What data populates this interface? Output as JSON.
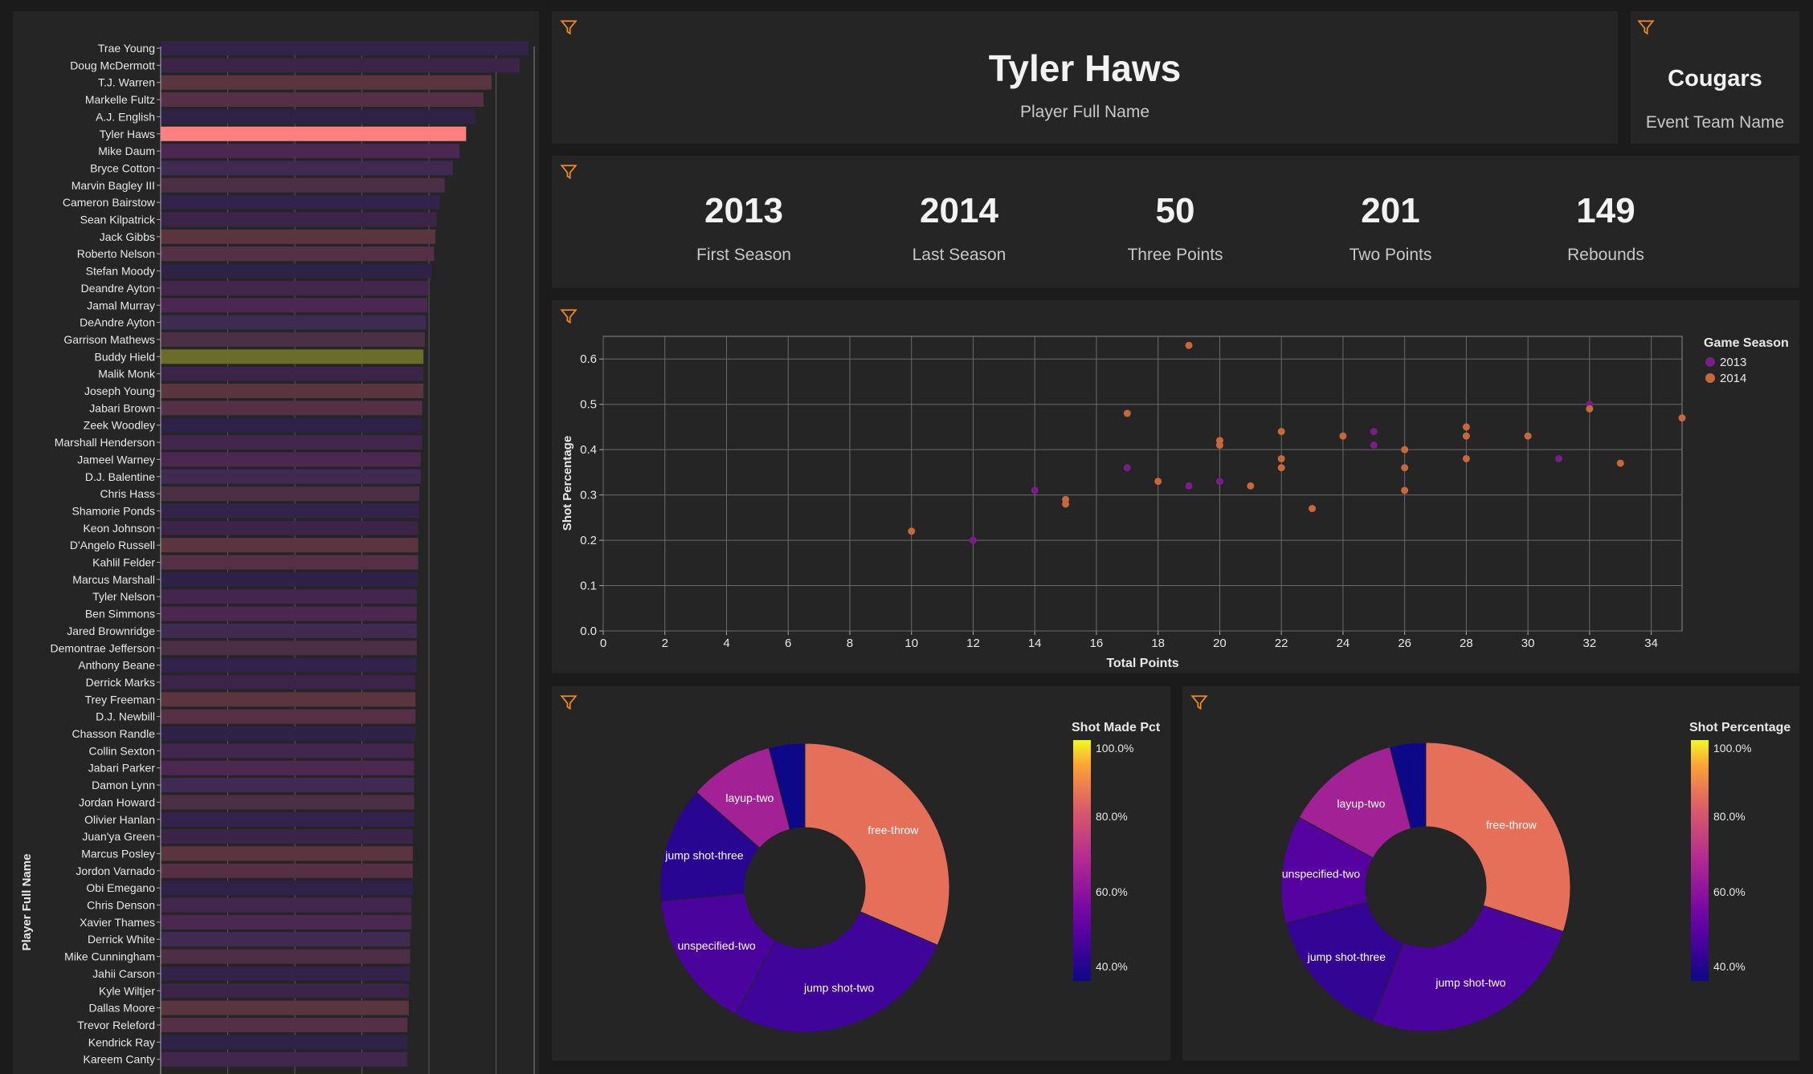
{
  "header": {
    "player_name": "Tyler Haws",
    "player_name_caption": "Player Full Name",
    "team_name": "Cougars",
    "team_name_caption": "Event Team Name"
  },
  "kpis": [
    {
      "value": "2013",
      "label": "First Season"
    },
    {
      "value": "2014",
      "label": "Last Season"
    },
    {
      "value": "50",
      "label": "Three Points"
    },
    {
      "value": "201",
      "label": "Two Points"
    },
    {
      "value": "149",
      "label": "Rebounds"
    }
  ],
  "icons": {
    "filter": "filter-funnel-icon",
    "filter_color": "#f28a1c"
  },
  "colors": {
    "selected_bar": "#ff7f7f",
    "highlight_bar": "#6b6b2a",
    "s2013": "#7a1d8a",
    "s2014": "#c8673a"
  },
  "chart_data": [
    {
      "type": "bar",
      "orientation": "horizontal",
      "ylabel": "Player Full Name",
      "selected": "Tyler Haws",
      "categories": [
        "Trae Young",
        "Doug McDermott",
        "T.J. Warren",
        "Markelle Fultz",
        "A.J. English",
        "Tyler Haws",
        "Mike Daum",
        "Bryce Cotton",
        "Marvin Bagley III",
        "Cameron Bairstow",
        "Sean Kilpatrick",
        "Jack Gibbs",
        "Roberto Nelson",
        "Stefan Moody",
        "Deandre Ayton",
        "Jamal Murray",
        "DeAndre Ayton",
        "Garrison Mathews",
        "Buddy Hield",
        "Malik Monk",
        "Joseph Young",
        "Jabari Brown",
        "Zeek Woodley",
        "Marshall Henderson",
        "Jameel Warney",
        "D.J. Balentine",
        "Chris Hass",
        "Shamorie Ponds",
        "Keon Johnson",
        "D'Angelo Russell",
        "Kahlil Felder",
        "Marcus Marshall",
        "Tyler Nelson",
        "Ben Simmons",
        "Jared Brownridge",
        "Demontrae Jefferson",
        "Anthony Beane",
        "Derrick Marks",
        "Trey Freeman",
        "D.J. Newbill",
        "Chasson Randle",
        "Collin Sexton",
        "Jabari Parker",
        "Damon Lynn",
        "Jordan Howard",
        "Olivier Hanlan",
        "Juan'ya Green",
        "Marcus Posley",
        "Jordon Varnado",
        "Obi Emegano",
        "Chris Denson",
        "Xavier Thames",
        "Derrick White",
        "Mike Cunningham",
        "Jahii Carson",
        "Kyle Wiltjer",
        "Dallas Moore",
        "Trevor Releford",
        "Kendrick Ray",
        "Kareem Canty"
      ],
      "values": [
        27.6,
        26.9,
        24.8,
        24.2,
        23.6,
        22.9,
        22.4,
        21.9,
        21.3,
        20.9,
        20.7,
        20.6,
        20.5,
        20.3,
        20.1,
        20.0,
        19.9,
        19.8,
        19.7,
        19.7,
        19.7,
        19.6,
        19.6,
        19.6,
        19.5,
        19.5,
        19.4,
        19.4,
        19.3,
        19.3,
        19.3,
        19.3,
        19.2,
        19.2,
        19.2,
        19.2,
        19.2,
        19.1,
        19.1,
        19.1,
        19.1,
        19.0,
        19.0,
        19.0,
        19.0,
        19.0,
        18.9,
        18.9,
        18.9,
        18.9,
        18.8,
        18.8,
        18.7,
        18.7,
        18.7,
        18.6,
        18.6,
        18.5,
        18.5,
        18.5
      ],
      "xlim": [
        0,
        28
      ]
    },
    {
      "type": "scatter",
      "xlabel": "Total Points",
      "ylabel": "Shot Percentage",
      "legend_title": "Game Season",
      "legend_position": "right",
      "grid": true,
      "xlim": [
        0,
        35
      ],
      "ylim": [
        0,
        0.65
      ],
      "xticks": [
        0,
        2,
        4,
        6,
        8,
        10,
        12,
        14,
        16,
        18,
        20,
        22,
        24,
        26,
        28,
        30,
        32,
        34
      ],
      "yticks": [
        0.0,
        0.1,
        0.2,
        0.3,
        0.4,
        0.5,
        0.6
      ],
      "series": [
        {
          "name": "2013",
          "color": "#7a1d8a",
          "points": [
            [
              12,
              0.2
            ],
            [
              14,
              0.31
            ],
            [
              17,
              0.36
            ],
            [
              19,
              0.32
            ],
            [
              20,
              0.33
            ],
            [
              25,
              0.44
            ],
            [
              25,
              0.41
            ],
            [
              31,
              0.38
            ],
            [
              32,
              0.5
            ]
          ]
        },
        {
          "name": "2014",
          "color": "#c8673a",
          "points": [
            [
              10,
              0.22
            ],
            [
              15,
              0.29
            ],
            [
              15,
              0.28
            ],
            [
              17,
              0.48
            ],
            [
              18,
              0.33
            ],
            [
              19,
              0.63
            ],
            [
              20,
              0.41
            ],
            [
              20,
              0.42
            ],
            [
              21,
              0.32
            ],
            [
              22,
              0.44
            ],
            [
              22,
              0.38
            ],
            [
              22,
              0.36
            ],
            [
              23,
              0.27
            ],
            [
              24,
              0.43
            ],
            [
              26,
              0.4
            ],
            [
              26,
              0.36
            ],
            [
              26,
              0.31
            ],
            [
              28,
              0.45
            ],
            [
              28,
              0.43
            ],
            [
              28,
              0.38
            ],
            [
              30,
              0.43
            ],
            [
              32,
              0.49
            ],
            [
              33,
              0.37
            ],
            [
              35,
              0.47
            ]
          ]
        }
      ]
    },
    {
      "type": "pie",
      "donut": true,
      "legend_title": "Shot Made Pct",
      "legend_ticks": [
        "100.0%",
        "80.0%",
        "60.0%",
        "40.0%"
      ],
      "slices": [
        {
          "label": "free-throw",
          "share": 0.315,
          "pct": 0.85
        },
        {
          "label": "jump shot-two",
          "share": 0.265,
          "pct": 0.42
        },
        {
          "label": "unspecified-two",
          "share": 0.155,
          "pct": 0.44
        },
        {
          "label": "jump shot-three",
          "share": 0.13,
          "pct": 0.38
        },
        {
          "label": "layup-two",
          "share": 0.095,
          "pct": 0.63
        },
        {
          "label": "",
          "share": 0.04,
          "pct": 0.33
        }
      ]
    },
    {
      "type": "pie",
      "donut": true,
      "legend_title": "Shot Percentage",
      "legend_ticks": [
        "100.0%",
        "80.0%",
        "60.0%",
        "40.0%"
      ],
      "slices": [
        {
          "label": "free-throw",
          "share": 0.3,
          "pct": 0.85
        },
        {
          "label": "jump shot-two",
          "share": 0.26,
          "pct": 0.44
        },
        {
          "label": "jump shot-three",
          "share": 0.15,
          "pct": 0.4
        },
        {
          "label": "unspecified-two",
          "share": 0.12,
          "pct": 0.46
        },
        {
          "label": "layup-two",
          "share": 0.13,
          "pct": 0.63
        },
        {
          "label": "",
          "share": 0.04,
          "pct": 0.33
        }
      ]
    }
  ]
}
